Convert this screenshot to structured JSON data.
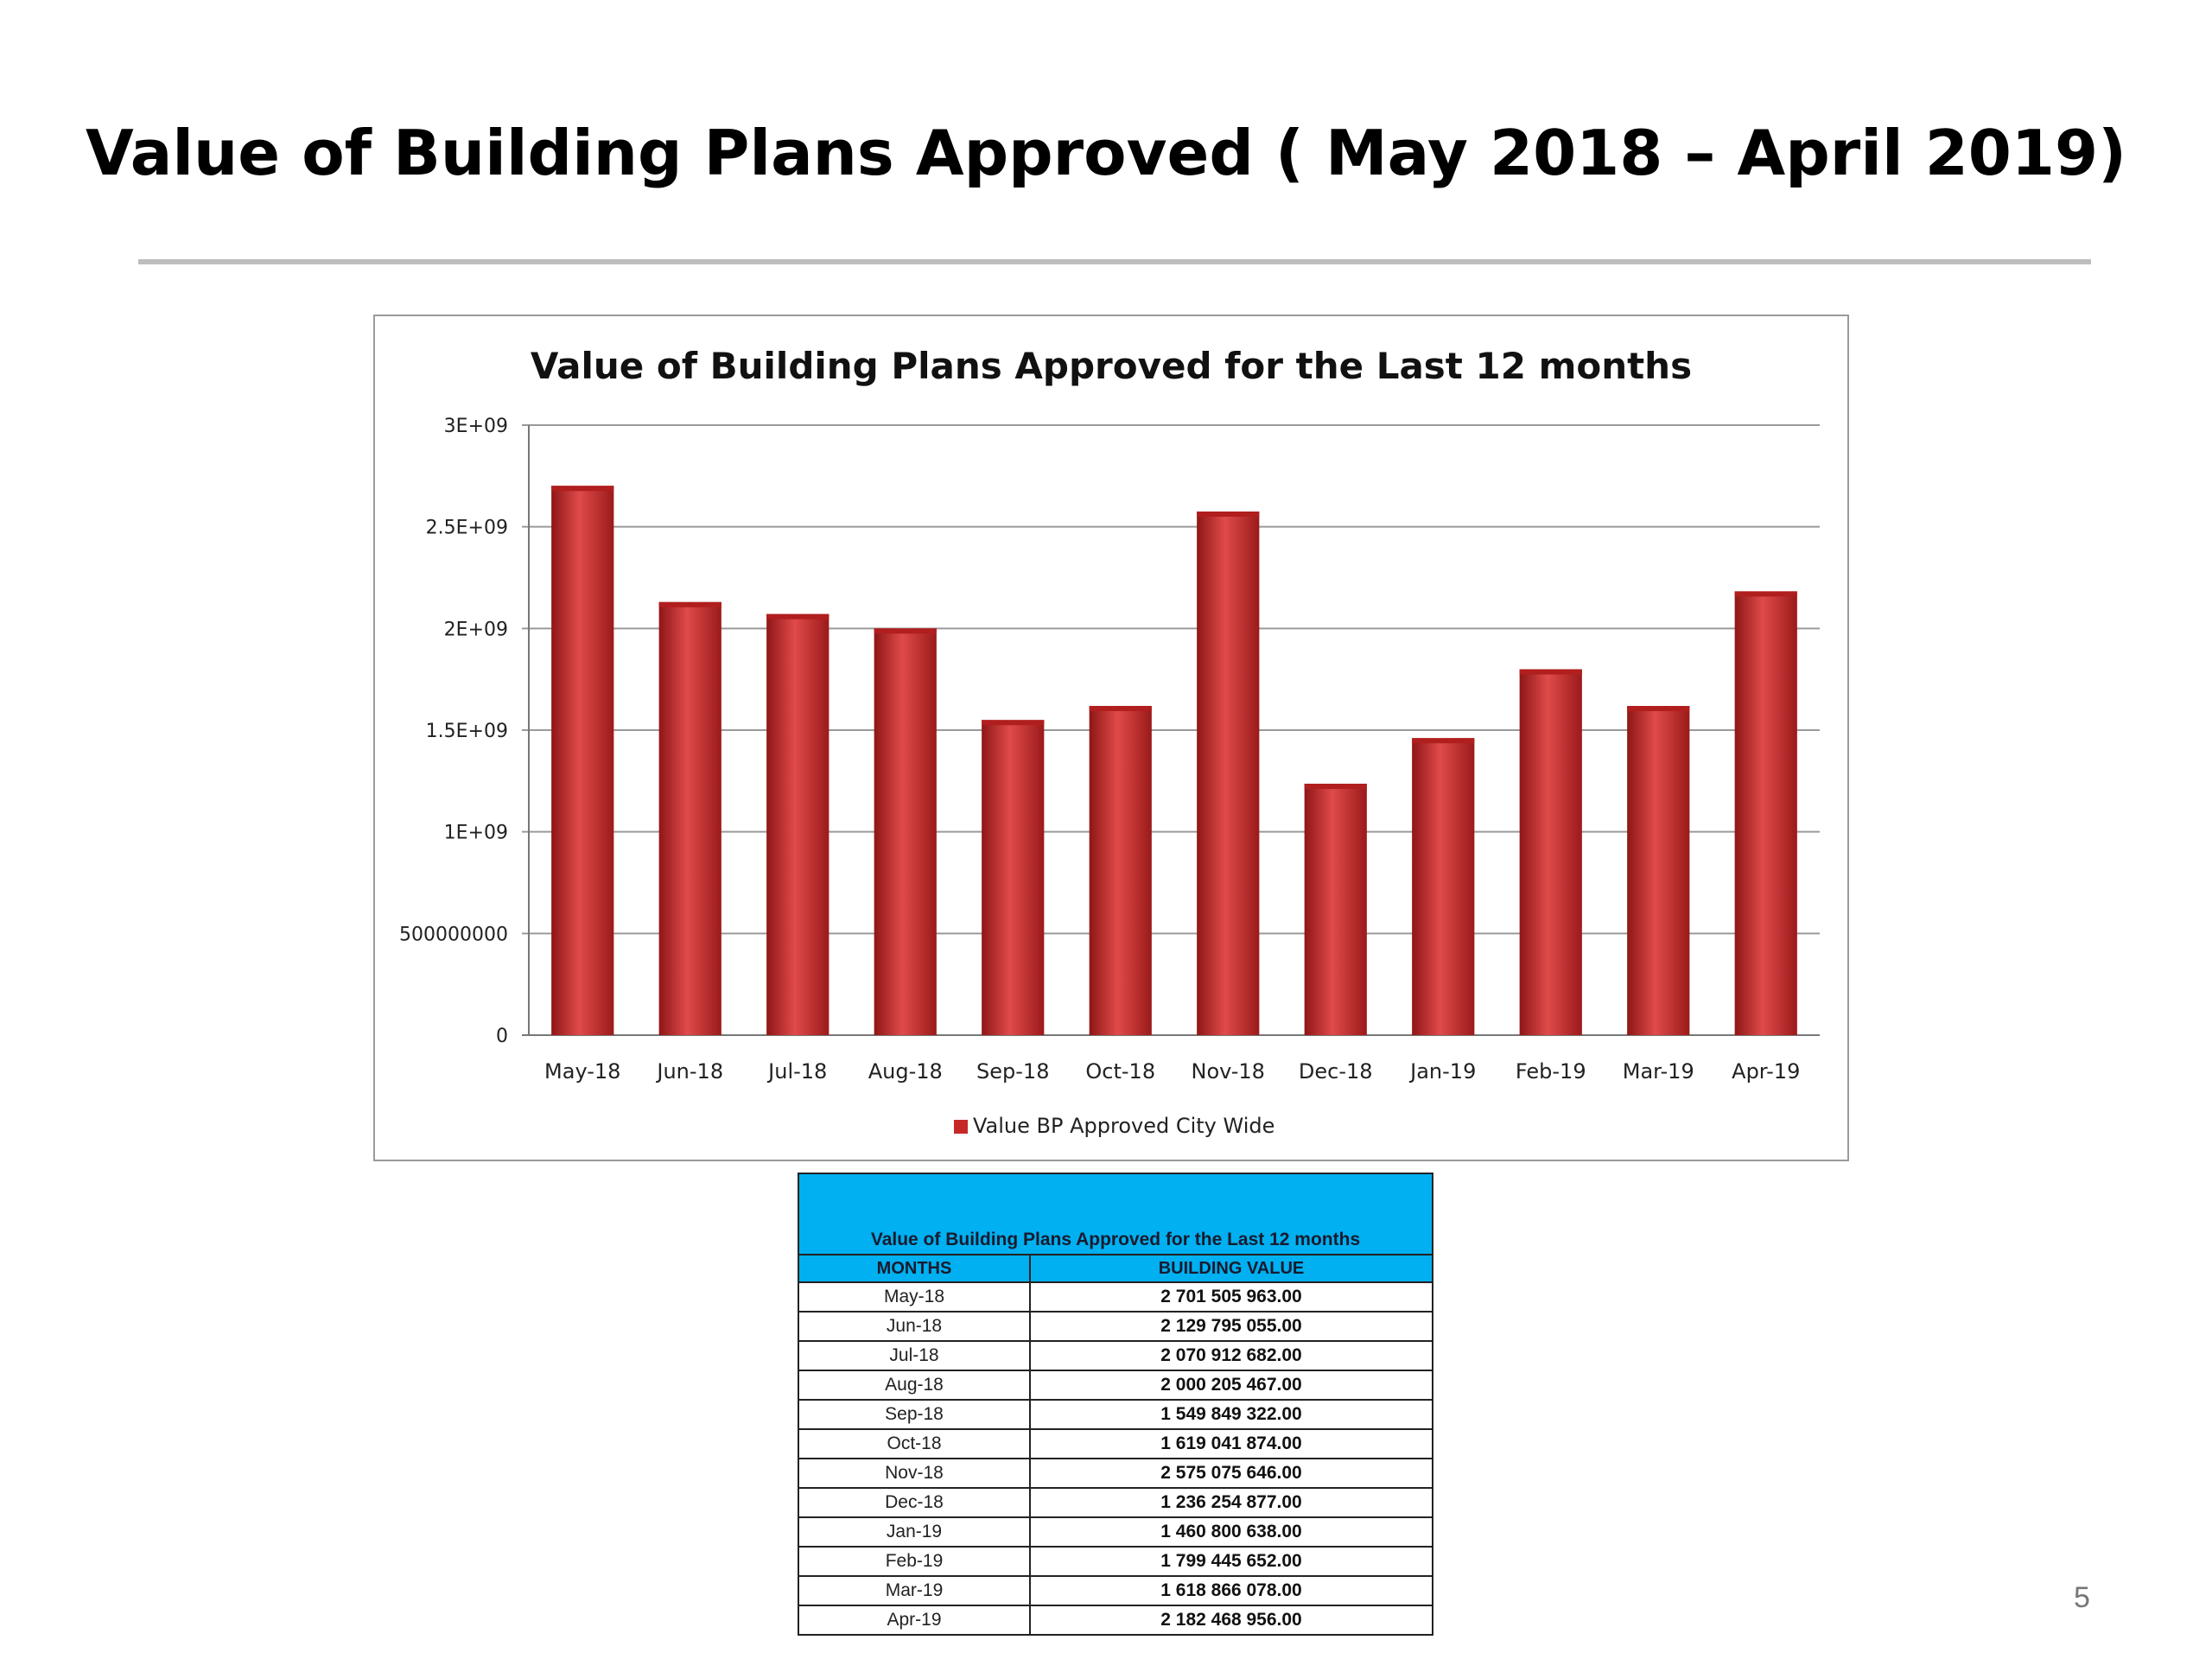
{
  "slide": {
    "title": "Value of Building Plans Approved ( May 2018 – April 2019)",
    "page_number": "5"
  },
  "colors": {
    "bar": "#c62828",
    "table_header": "#00b0f0"
  },
  "chart_data": {
    "type": "bar",
    "title": "Value of Building Plans Approved for the Last 12 months",
    "categories": [
      "May-18",
      "Jun-18",
      "Jul-18",
      "Aug-18",
      "Sep-18",
      "Oct-18",
      "Nov-18",
      "Dec-18",
      "Jan-19",
      "Feb-19",
      "Mar-19",
      "Apr-19"
    ],
    "series": [
      {
        "name": "Value BP Approved City Wide",
        "values": [
          2701505963,
          2129795055,
          2070912682,
          2000205467,
          1549849322,
          1619041874,
          2575075646,
          1236254877,
          1460800638,
          1799445652,
          1618866078,
          2182468956
        ]
      }
    ],
    "yticks": [
      "0",
      "500000000",
      "1E+09",
      "1.5E+09",
      "2E+09",
      "2.5E+09",
      "3E+09"
    ],
    "ylim": [
      0,
      3000000000
    ],
    "grid": true,
    "legend": "bottom"
  },
  "table": {
    "title": "Value of Building Plans Approved for the Last 12 months",
    "headers": [
      "MONTHS",
      "BUILDING VALUE"
    ],
    "rows": [
      [
        "May-18",
        "2 701 505 963.00"
      ],
      [
        "Jun-18",
        "2 129 795 055.00"
      ],
      [
        "Jul-18",
        "2 070 912 682.00"
      ],
      [
        "Aug-18",
        "2 000 205 467.00"
      ],
      [
        "Sep-18",
        "1 549 849 322.00"
      ],
      [
        "Oct-18",
        "1 619 041 874.00"
      ],
      [
        "Nov-18",
        "2 575 075 646.00"
      ],
      [
        "Dec-18",
        "1 236 254 877.00"
      ],
      [
        "Jan-19",
        "1 460 800 638.00"
      ],
      [
        "Feb-19",
        "1 799 445 652.00"
      ],
      [
        "Mar-19",
        "1 618 866 078.00"
      ],
      [
        "Apr-19",
        "2 182 468 956.00"
      ]
    ]
  }
}
